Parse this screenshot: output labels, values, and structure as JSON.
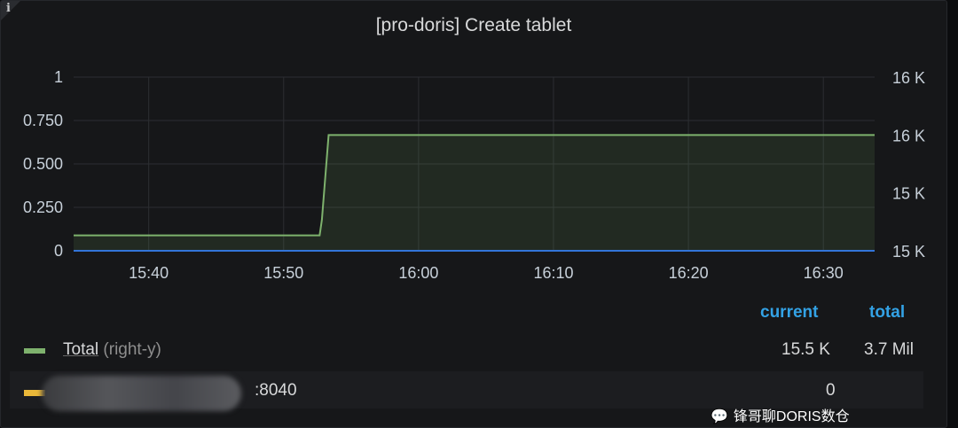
{
  "panel": {
    "title": "[pro-doris] Create tablet",
    "info_icon": "i"
  },
  "chart_data": {
    "type": "line",
    "x_ticks": [
      "15:40",
      "15:50",
      "16:00",
      "16:10",
      "16:20",
      "16:30"
    ],
    "left_y": {
      "ticks": [
        "0",
        "0.250",
        "0.500",
        "0.750",
        "1"
      ],
      "ylim": [
        0,
        1
      ]
    },
    "right_y": {
      "ticks": [
        "15 K",
        "15 K",
        "16 K",
        "16 K"
      ],
      "ylim": [
        15200,
        15650
      ]
    },
    "grid": true,
    "xlim": [
      "15:34:26",
      "16:33:48"
    ],
    "series": [
      {
        "name": "Total (right-y)",
        "axis": "right",
        "color": "#7eb26d",
        "fill": true,
        "x": [
          "15:34:26",
          "15:52:40",
          "15:52:50",
          "15:53:20",
          "16:33:48"
        ],
        "y": [
          15240,
          15240,
          15280,
          15500,
          15500
        ]
      },
      {
        "name": ":8040",
        "axis": "left",
        "color": "#3274d9",
        "x": [
          "15:34:26",
          "16:33:48"
        ],
        "y": [
          0,
          0
        ]
      }
    ]
  },
  "legend": {
    "headers": {
      "current": "current",
      "total": "total"
    },
    "items": [
      {
        "label": "Total",
        "suffix": "(right-y)",
        "color": "#7eb26d",
        "current": "15.5 K",
        "total": "3.7 Mil"
      },
      {
        "label": ":8040",
        "color": "#eab839",
        "current": "0",
        "total": ""
      }
    ]
  },
  "watermark": "锋哥聊DORIS数仓"
}
